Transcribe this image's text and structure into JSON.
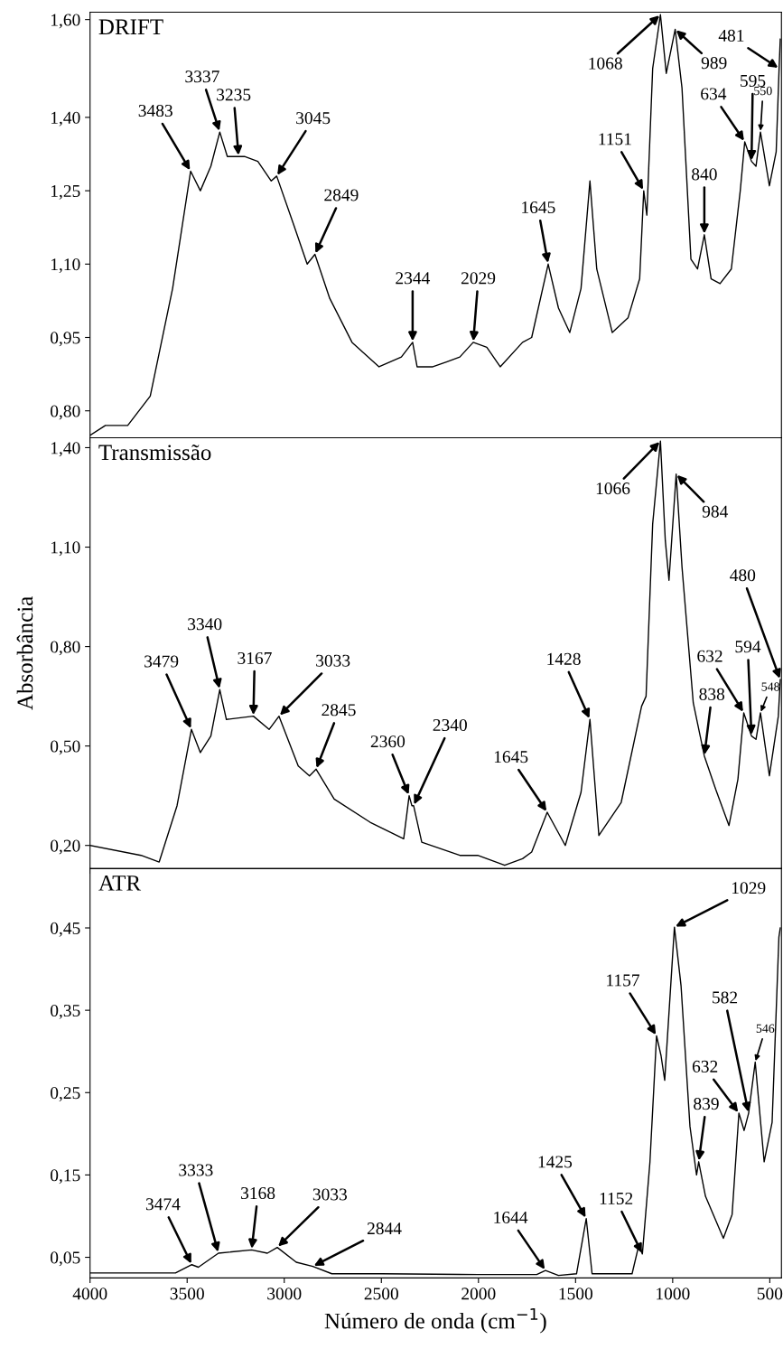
{
  "chart_data": [
    {
      "type": "line",
      "title": "DRIFT",
      "tick_labels": "y",
      "xlim": [
        4000,
        440
      ],
      "xticks": [
        4000,
        3500,
        3000,
        2500,
        2000,
        1500,
        1000,
        500
      ],
      "ylim": [
        0.745,
        1.615
      ],
      "yticks": [
        {
          "value": 0.8,
          "label": "0,80"
        },
        {
          "value": 0.95,
          "label": "0,95"
        },
        {
          "value": 1.1,
          "label": "1,10"
        },
        {
          "value": 1.25,
          "label": "1,25"
        },
        {
          "value": 1.4,
          "label": "1,40"
        },
        {
          "value": 1.6,
          "label": "1,60"
        }
      ],
      "x": [
        4000,
        3921,
        3806,
        3690,
        3575,
        3482,
        3432,
        3378,
        3332,
        3293,
        3205,
        3136,
        3067,
        3039,
        2951,
        2882,
        2842,
        2766,
        2651,
        2512,
        2397,
        2339,
        2316,
        2235,
        2165,
        2096,
        2027,
        1957,
        1888,
        1773,
        1726,
        1641,
        1588,
        1530,
        1472,
        1426,
        1391,
        1311,
        1230,
        1170,
        1149,
        1133,
        1103,
        1063,
        1033,
        987,
        952,
        906,
        872,
        837,
        802,
        756,
        698,
        652,
        629,
        594,
        571,
        548,
        502,
        467,
        452,
        446
      ],
      "series": [
        {
          "color": "#000000",
          "values": [
            0.75,
            0.77,
            0.77,
            0.83,
            1.05,
            1.29,
            1.25,
            1.3,
            1.37,
            1.32,
            1.32,
            1.31,
            1.27,
            1.28,
            1.18,
            1.1,
            1.12,
            1.03,
            0.94,
            0.89,
            0.91,
            0.94,
            0.89,
            0.89,
            0.9,
            0.91,
            0.94,
            0.93,
            0.89,
            0.94,
            0.95,
            1.1,
            1.01,
            0.96,
            1.05,
            1.27,
            1.09,
            0.96,
            0.99,
            1.07,
            1.25,
            1.2,
            1.5,
            1.61,
            1.49,
            1.58,
            1.46,
            1.11,
            1.09,
            1.16,
            1.07,
            1.06,
            1.09,
            1.25,
            1.35,
            1.31,
            1.3,
            1.37,
            1.26,
            1.33,
            1.5,
            1.56
          ]
        }
      ],
      "annotations": [
        {
          "text": "3483",
          "x": 3482,
          "y": 1.29
        },
        {
          "text": "3337",
          "x": 3332,
          "y": 1.37
        },
        {
          "text": "3235",
          "x": 3235,
          "y": 1.32
        },
        {
          "text": "3045",
          "x": 3039,
          "y": 1.28
        },
        {
          "text": "2849",
          "x": 2842,
          "y": 1.12
        },
        {
          "text": "2344",
          "x": 2339,
          "y": 0.94
        },
        {
          "text": "2029",
          "x": 2027,
          "y": 0.94
        },
        {
          "text": "1645",
          "x": 1641,
          "y": 1.1
        },
        {
          "text": "1151",
          "x": 1149,
          "y": 1.25
        },
        {
          "text": "1068",
          "x": 1063,
          "y": 1.61
        },
        {
          "text": "989",
          "x": 987,
          "y": 1.58
        },
        {
          "text": "840",
          "x": 837,
          "y": 1.16
        },
        {
          "text": "634",
          "x": 629,
          "y": 1.35
        },
        {
          "text": "595",
          "x": 594,
          "y": 1.31
        },
        {
          "text": "550",
          "x": 548,
          "y": 1.37
        },
        {
          "text": "481",
          "x": 452,
          "y": 1.5
        }
      ]
    },
    {
      "type": "line",
      "title": "Transmissão",
      "ylabel": "Absorbância",
      "tick_labels": "y",
      "xlim": [
        4000,
        440
      ],
      "xticks": [
        4000,
        3500,
        3000,
        2500,
        2000,
        1500,
        1000,
        500
      ],
      "ylim": [
        0.13,
        1.43
      ],
      "yticks": [
        {
          "value": 0.2,
          "label": "0,20"
        },
        {
          "value": 0.5,
          "label": "0,50"
        },
        {
          "value": 0.8,
          "label": "0,80"
        },
        {
          "value": 1.1,
          "label": "1,10"
        },
        {
          "value": 1.4,
          "label": "1,40"
        }
      ],
      "x": [
        4000,
        3737,
        3644,
        3552,
        3478,
        3432,
        3378,
        3332,
        3298,
        3159,
        3078,
        3027,
        2928,
        2870,
        2836,
        2743,
        2558,
        2385,
        2357,
        2343,
        2334,
        2292,
        2096,
        2004,
        1865,
        1773,
        1726,
        1646,
        1553,
        1472,
        1426,
        1380,
        1265,
        1160,
        1137,
        1103,
        1063,
        1038,
        1019,
        982,
        952,
        894,
        837,
        779,
        710,
        664,
        634,
        594,
        571,
        548,
        502,
        456,
        446
      ],
      "series": [
        {
          "color": "#000000",
          "values": [
            0.2,
            0.17,
            0.15,
            0.32,
            0.55,
            0.48,
            0.53,
            0.67,
            0.58,
            0.59,
            0.55,
            0.59,
            0.44,
            0.41,
            0.43,
            0.34,
            0.27,
            0.22,
            0.35,
            0.32,
            0.32,
            0.21,
            0.17,
            0.17,
            0.14,
            0.16,
            0.18,
            0.3,
            0.2,
            0.36,
            0.58,
            0.23,
            0.33,
            0.62,
            0.65,
            1.17,
            1.42,
            1.12,
            1.0,
            1.32,
            1.04,
            0.63,
            0.47,
            0.37,
            0.26,
            0.4,
            0.6,
            0.53,
            0.52,
            0.6,
            0.41,
            0.59,
            0.7
          ]
        }
      ],
      "annotations": [
        {
          "text": "3479",
          "x": 3478,
          "y": 0.55
        },
        {
          "text": "3340",
          "x": 3332,
          "y": 0.67
        },
        {
          "text": "3167",
          "x": 3159,
          "y": 0.59
        },
        {
          "text": "3033",
          "x": 3027,
          "y": 0.59
        },
        {
          "text": "2845",
          "x": 2836,
          "y": 0.43
        },
        {
          "text": "2360",
          "x": 2357,
          "y": 0.35
        },
        {
          "text": "2340",
          "x": 2334,
          "y": 0.32
        },
        {
          "text": "1645",
          "x": 1646,
          "y": 0.3
        },
        {
          "text": "1428",
          "x": 1426,
          "y": 0.58
        },
        {
          "text": "1066",
          "x": 1063,
          "y": 1.42
        },
        {
          "text": "984",
          "x": 982,
          "y": 1.32
        },
        {
          "text": "838",
          "x": 837,
          "y": 0.47
        },
        {
          "text": "632",
          "x": 634,
          "y": 0.6
        },
        {
          "text": "594",
          "x": 594,
          "y": 0.53
        },
        {
          "text": "548",
          "x": 548,
          "y": 0.6
        },
        {
          "text": "480",
          "x": 446,
          "y": 0.7
        }
      ]
    },
    {
      "type": "line",
      "title": "ATR",
      "xlabel": "Número de onda (cm$^{−1}$)",
      "xlim": [
        4000,
        440
      ],
      "xticks": [
        4000,
        3500,
        3000,
        2500,
        2000,
        1500,
        1000,
        500
      ],
      "ylim": [
        0.025,
        0.522
      ],
      "yticks": [
        {
          "value": 0.05,
          "label": "0,05"
        },
        {
          "value": 0.15,
          "label": "0,15"
        },
        {
          "value": 0.25,
          "label": "0,25"
        },
        {
          "value": 0.35,
          "label": "0,35"
        },
        {
          "value": 0.45,
          "label": "0,45"
        }
      ],
      "x": [
        4000,
        3560,
        3476,
        3442,
        3339,
        3168,
        3087,
        3036,
        2938,
        2853,
        2755,
        2500,
        2000,
        1700,
        1655,
        1588,
        1495,
        1445,
        1415,
        1209,
        1174,
        1156,
        1117,
        1083,
        1060,
        1041,
        991,
        957,
        911,
        877,
        866,
        831,
        739,
        694,
        659,
        632,
        609,
        575,
        529,
        488,
        453,
        446
      ],
      "series": [
        {
          "color": "#000000",
          "values": [
            0.031,
            0.031,
            0.041,
            0.038,
            0.055,
            0.059,
            0.055,
            0.062,
            0.044,
            0.039,
            0.03,
            0.03,
            0.029,
            0.029,
            0.034,
            0.028,
            0.03,
            0.097,
            0.03,
            0.03,
            0.065,
            0.054,
            0.166,
            0.319,
            0.295,
            0.265,
            0.451,
            0.38,
            0.209,
            0.15,
            0.166,
            0.124,
            0.073,
            0.102,
            0.225,
            0.204,
            0.225,
            0.287,
            0.166,
            0.214,
            0.439,
            0.45
          ]
        }
      ],
      "annotations": [
        {
          "text": "3474",
          "x": 3476,
          "y": 0.041
        },
        {
          "text": "3333",
          "x": 3339,
          "y": 0.055
        },
        {
          "text": "3168",
          "x": 3168,
          "y": 0.059
        },
        {
          "text": "3033",
          "x": 3036,
          "y": 0.062
        },
        {
          "text": "2844",
          "x": 2853,
          "y": 0.039
        },
        {
          "text": "1644",
          "x": 1655,
          "y": 0.034
        },
        {
          "text": "1425",
          "x": 1445,
          "y": 0.097
        },
        {
          "text": "1152",
          "x": 1156,
          "y": 0.054
        },
        {
          "text": "1157",
          "x": 1083,
          "y": 0.319
        },
        {
          "text": "1029",
          "x": 991,
          "y": 0.451
        },
        {
          "text": "839",
          "x": 866,
          "y": 0.166
        },
        {
          "text": "632",
          "x": 659,
          "y": 0.225
        },
        {
          "text": "582",
          "x": 609,
          "y": 0.225
        },
        {
          "text": "546",
          "x": 575,
          "y": 0.287
        }
      ]
    }
  ]
}
